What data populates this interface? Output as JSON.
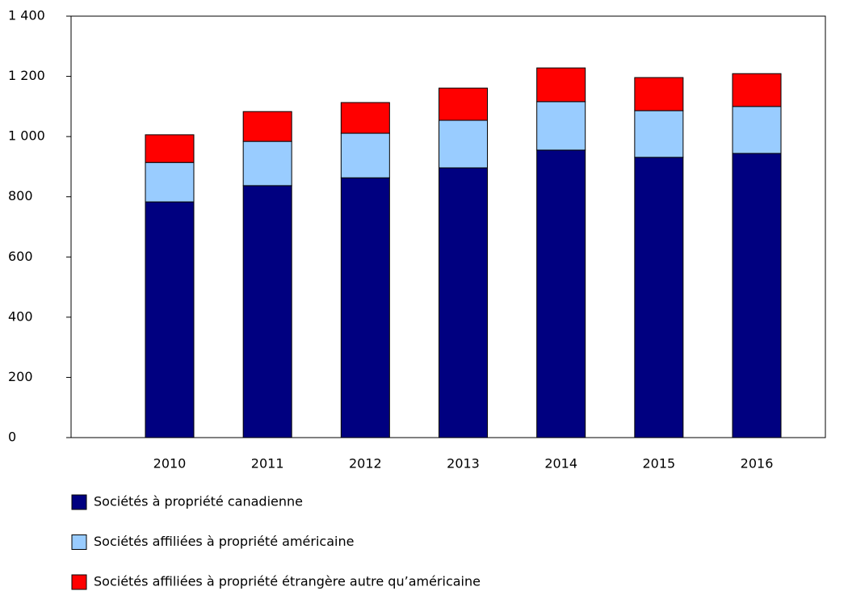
{
  "chart_data": {
    "type": "stacked_bar",
    "categories": [
      "2010",
      "2011",
      "2012",
      "2013",
      "2014",
      "2015",
      "2016"
    ],
    "series": [
      {
        "name": "Sociétés à propriété canadienne",
        "color": "#000080",
        "values": [
          783,
          837,
          863,
          896,
          955,
          931,
          944
        ]
      },
      {
        "name": "Sociétés affiliées à propriété américaine",
        "color": "#99ccff",
        "values": [
          131,
          147,
          148,
          158,
          161,
          155,
          156
        ]
      },
      {
        "name": "Sociétés affiliées à propriété étrangère autre qu’américaine",
        "color": "#ff0000",
        "values": [
          92,
          99,
          102,
          107,
          112,
          110,
          109
        ]
      }
    ],
    "ylim": [
      0,
      1400
    ],
    "yticks": [
      0,
      200,
      400,
      600,
      800,
      {
        "value": 1000,
        "label": "1 000"
      },
      {
        "value": 1200,
        "label": "1 200"
      },
      {
        "value": 1400,
        "label": "1 400"
      }
    ],
    "legend": "bottom"
  }
}
